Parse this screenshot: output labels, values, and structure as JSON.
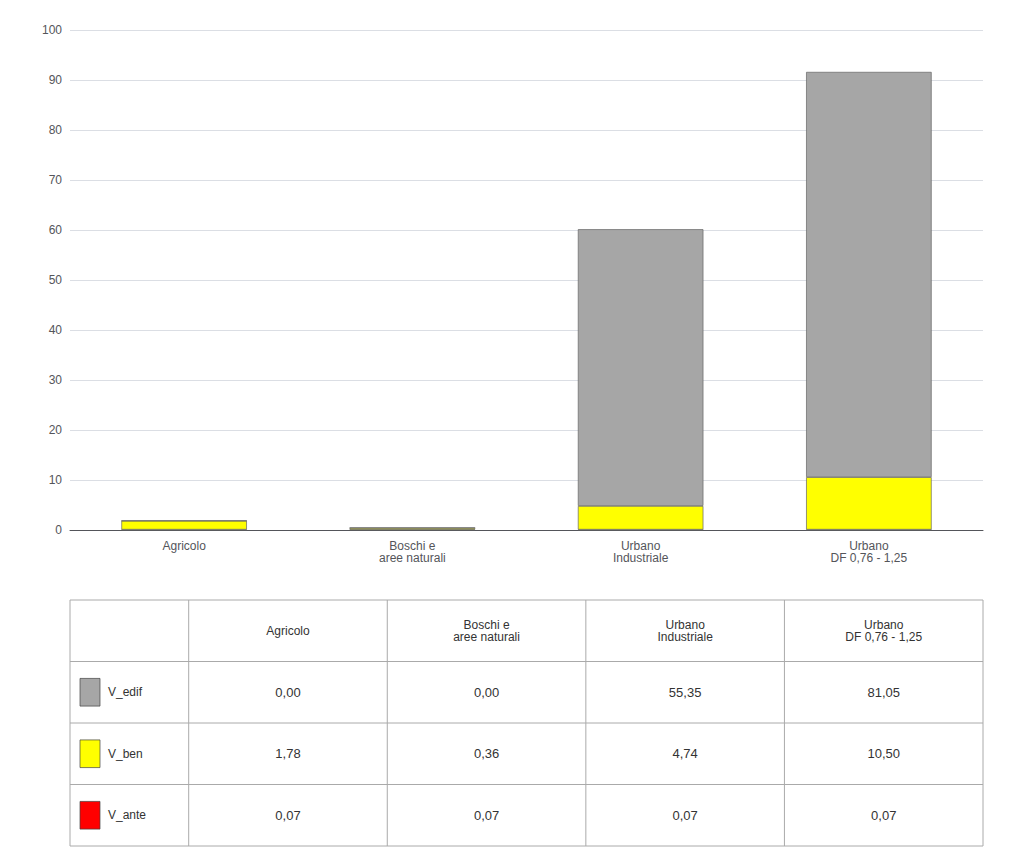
{
  "chart_data": {
    "type": "bar",
    "stacked": true,
    "categories": [
      "Agricolo",
      "Boschi e\naree naturali",
      "Urbano\nIndustriale",
      "Urbano\nDF 0,76 - 1,25"
    ],
    "series": [
      {
        "name": "V_ante",
        "color": "#ff0000",
        "values": [
          0.07,
          0.07,
          0.07,
          0.07
        ],
        "value_labels": [
          "0,07",
          "0,07",
          "0,07",
          "0,07"
        ]
      },
      {
        "name": "V_ben",
        "color": "#ffff00",
        "values": [
          1.78,
          0.36,
          4.74,
          10.5
        ],
        "value_labels": [
          "1,78",
          "0,36",
          "4,74",
          "10,50"
        ]
      },
      {
        "name": "V_edif",
        "color": "#a6a6a6",
        "values": [
          0.0,
          0.0,
          55.35,
          81.05
        ],
        "value_labels": [
          "0,00",
          "0,00",
          "55,35",
          "81,05"
        ]
      }
    ],
    "ylim": [
      0,
      100
    ],
    "yticks": [
      0,
      10,
      20,
      30,
      40,
      50,
      60,
      70,
      80,
      90,
      100
    ],
    "grid": true
  }
}
